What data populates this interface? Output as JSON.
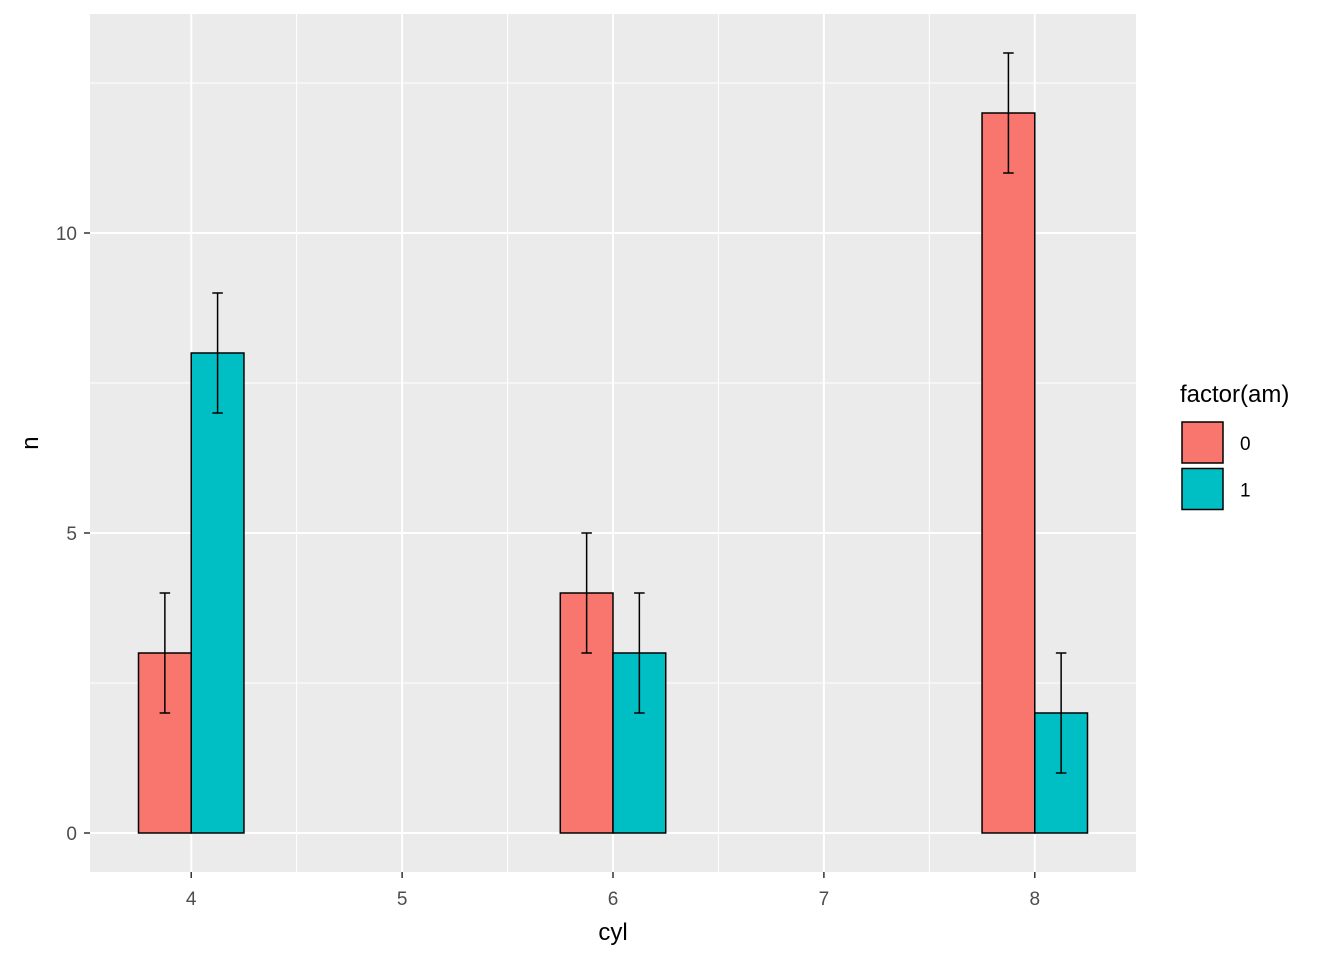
{
  "chart_data": {
    "type": "bar",
    "xlabel": "cyl",
    "ylabel": "n",
    "x_ticks": [
      "4",
      "5",
      "6",
      "7",
      "8"
    ],
    "y_ticks": [
      "0",
      "5",
      "10"
    ],
    "xlim": [
      3.52,
      8.48
    ],
    "ylim": [
      -0.65,
      13.65
    ],
    "grid": true,
    "background": "#ebebeb",
    "legend": {
      "title": "factor(am)",
      "position": "right",
      "entries": [
        {
          "label": "0",
          "color": "#f8766d"
        },
        {
          "label": "1",
          "color": "#00bfc4"
        }
      ]
    },
    "categories": [
      4,
      6,
      8
    ],
    "series": [
      {
        "name": "0",
        "color": "#f8766d",
        "values": [
          3,
          4,
          12
        ],
        "error_low": [
          2,
          3,
          11
        ],
        "error_high": [
          4,
          5,
          13
        ]
      },
      {
        "name": "1",
        "color": "#00bfc4",
        "values": [
          8,
          3,
          2
        ],
        "error_low": [
          7,
          2,
          1
        ],
        "error_high": [
          9,
          4,
          3
        ]
      }
    ]
  }
}
